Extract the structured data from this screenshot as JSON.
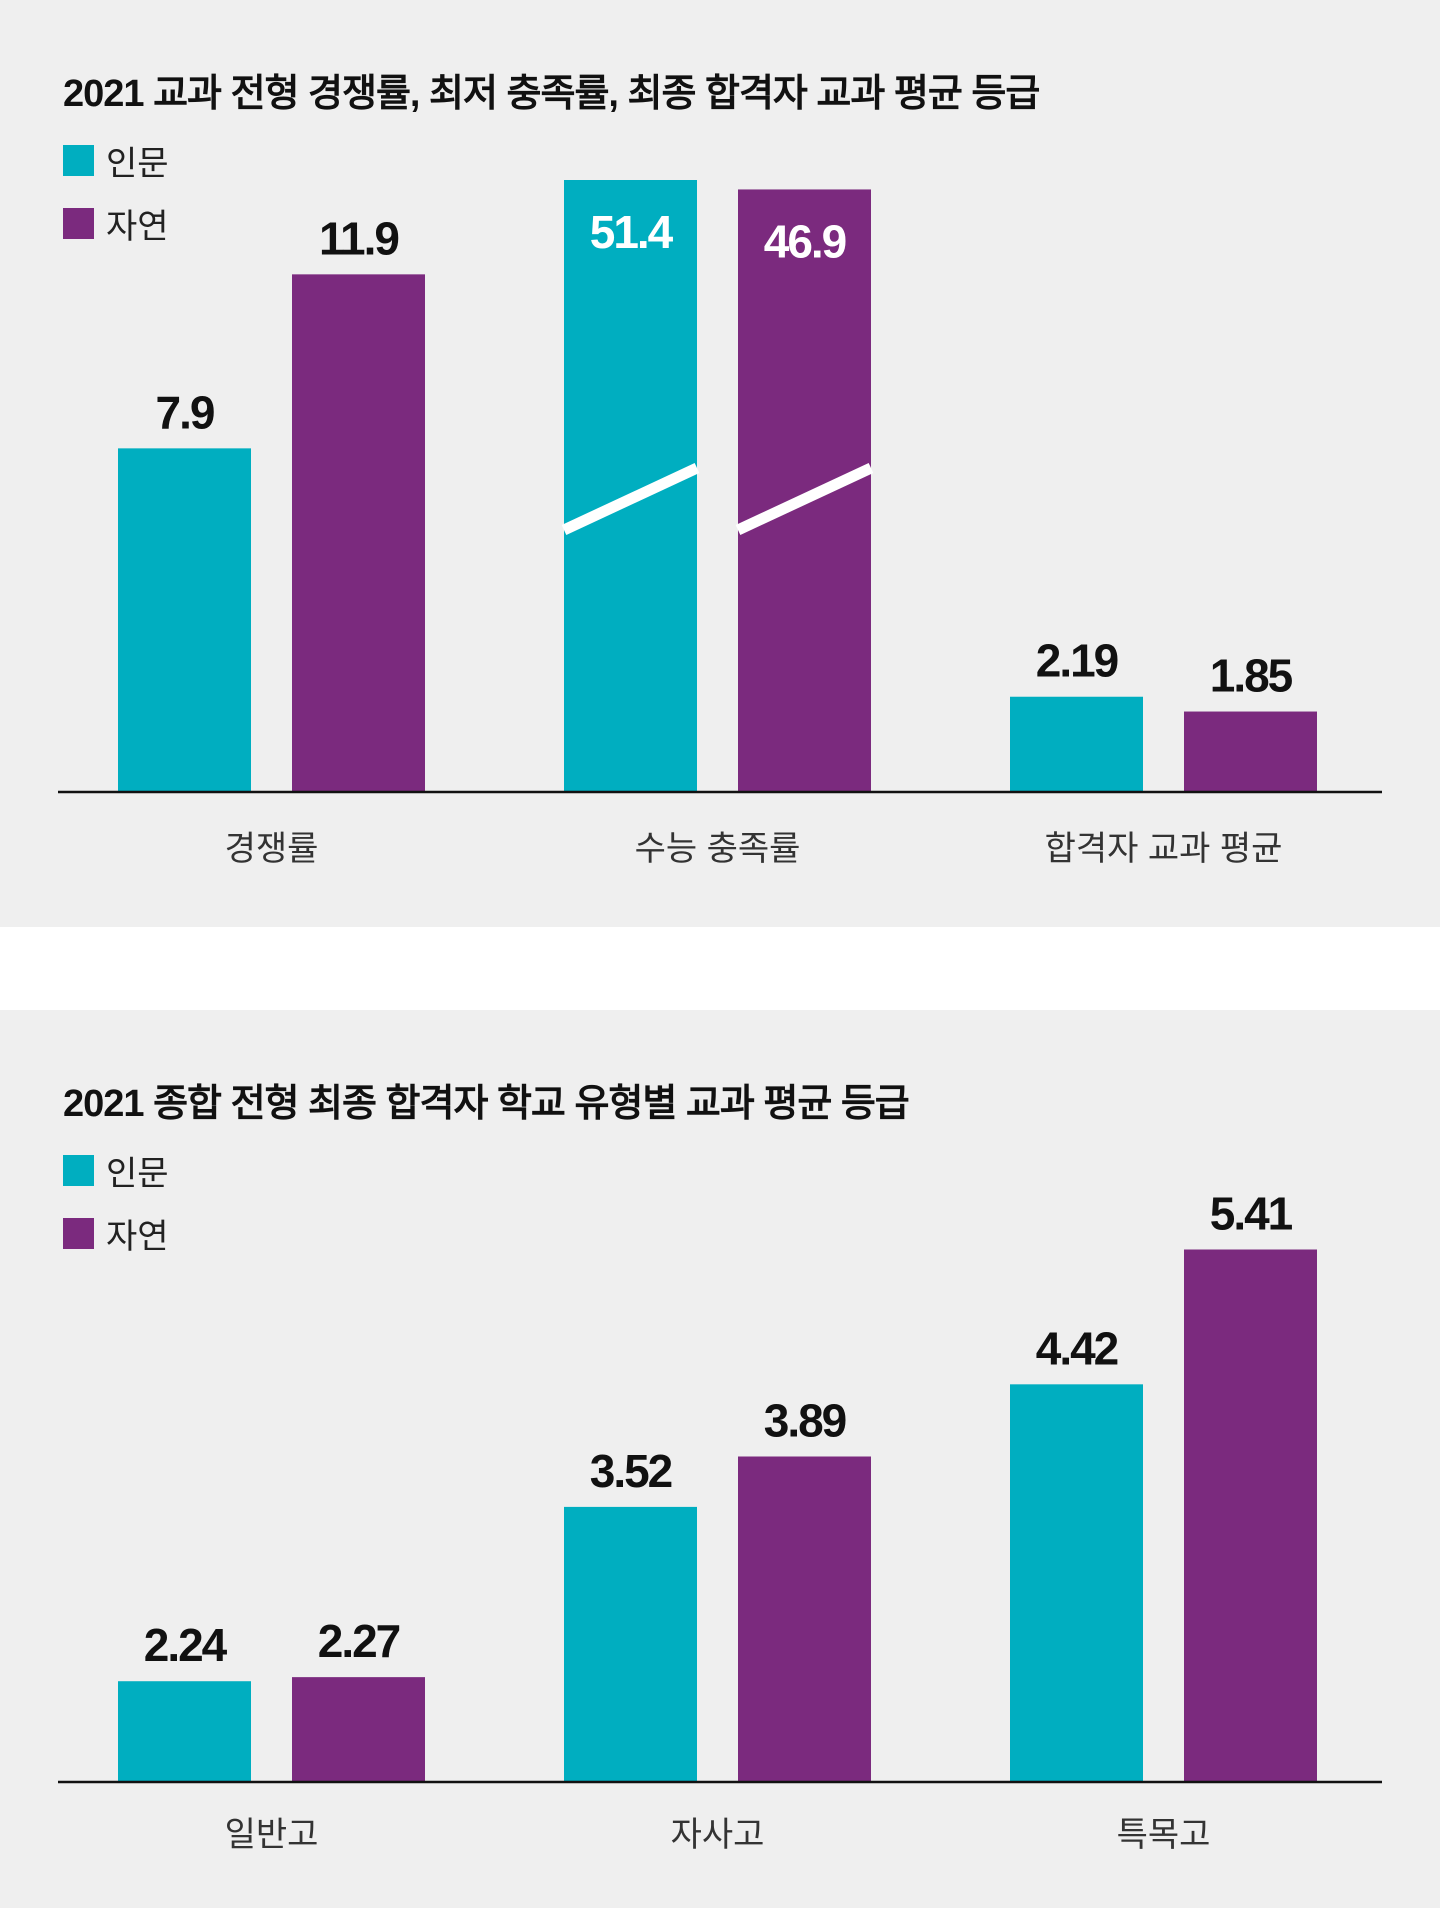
{
  "colors": {
    "series_a": "#00aec0",
    "series_b": "#7b2a7e",
    "axis": "#111111",
    "break": "#ffffff"
  },
  "chart_data": [
    {
      "type": "bar",
      "title": "2021 교과 전형 경쟁률, 최저 충족률, 최종 합격자 교과 평균 등급",
      "categories": [
        "경쟁률",
        "수능 충족률",
        "합격자 교과 평균"
      ],
      "series": [
        {
          "name": "인문",
          "values": [
            7.9,
            51.4,
            2.19
          ]
        },
        {
          "name": "자연",
          "values": [
            11.9,
            46.9,
            1.85
          ]
        }
      ],
      "value_labels": [
        [
          "7.9",
          "51.4",
          "2.19"
        ],
        [
          "11.9",
          "46.9",
          "1.85"
        ]
      ],
      "legend_position": "top-left",
      "axis_break": "수능 충족률",
      "xlabel": "",
      "ylabel": "",
      "ylim": [
        0,
        14
      ]
    },
    {
      "type": "bar",
      "title": "2021 종합 전형 최종 합격자 학교 유형별 교과 평균 등급",
      "categories": [
        "일반고",
        "자사고",
        "특목고"
      ],
      "series": [
        {
          "name": "인문",
          "values": [
            2.24,
            3.52,
            4.42
          ]
        },
        {
          "name": "자연",
          "values": [
            2.27,
            3.89,
            5.41
          ]
        }
      ],
      "value_labels": [
        [
          "2.24",
          "3.52",
          "4.42"
        ],
        [
          "2.27",
          "3.89",
          "5.41"
        ]
      ],
      "legend_position": "top-left",
      "xlabel": "",
      "ylabel": "",
      "ylim": [
        1.5,
        5.7
      ]
    }
  ]
}
